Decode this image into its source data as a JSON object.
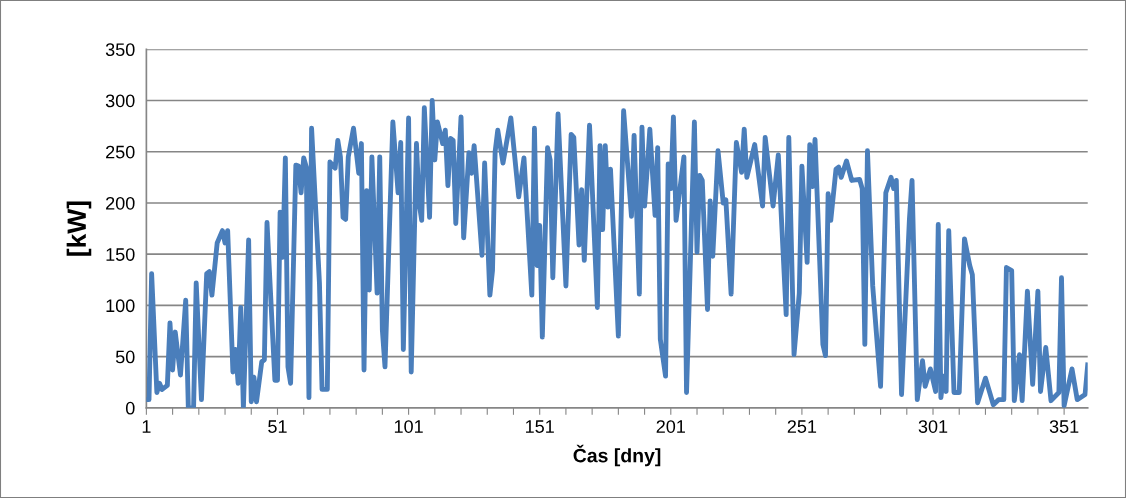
{
  "chart_data": {
    "type": "line",
    "xlabel": "Čas [dny]",
    "ylabel": "[kW]",
    "series": [
      {
        "color": "#4a7ebb",
        "x": [
          1,
          2,
          3,
          5,
          6,
          7,
          9,
          10,
          11,
          12,
          14,
          16,
          17,
          19,
          20,
          22,
          24,
          25,
          26,
          28,
          30,
          31,
          32,
          34,
          35,
          36,
          37,
          38,
          40,
          41,
          42,
          43,
          45,
          46,
          47,
          50,
          51,
          52,
          53,
          54,
          55,
          56,
          58,
          59,
          60,
          61,
          62,
          63,
          64,
          67,
          68,
          70,
          71,
          73,
          74,
          75,
          76,
          77,
          78,
          80,
          82,
          83,
          84,
          85,
          86,
          87,
          89,
          90,
          91,
          92,
          95,
          97,
          98,
          99,
          101,
          102,
          104,
          105,
          106,
          107,
          109,
          110,
          111,
          112,
          114,
          115,
          116,
          117,
          118,
          119,
          121,
          122,
          124,
          125,
          126,
          129,
          130,
          132,
          133,
          134,
          135,
          137,
          140,
          143,
          145,
          148,
          149,
          150,
          151,
          152,
          154,
          155,
          156,
          158,
          161,
          163,
          164,
          166,
          167,
          168,
          170,
          173,
          174,
          175,
          176,
          177,
          178,
          181,
          183,
          186,
          187,
          189,
          190,
          191,
          192,
          193,
          195,
          196,
          197,
          199,
          200,
          201,
          202,
          203,
          206,
          207,
          210,
          211,
          212,
          213,
          215,
          216,
          217,
          219,
          221,
          222,
          224,
          226,
          228,
          229,
          230,
          233,
          236,
          237,
          240,
          242,
          245,
          246,
          248,
          250,
          251,
          253,
          254,
          255,
          256,
          259,
          260,
          261,
          262,
          264,
          265,
          266,
          268,
          270,
          273,
          274,
          275,
          276,
          278,
          281,
          283,
          285,
          286,
          287,
          289,
          292,
          293,
          295,
          297,
          298,
          300,
          302,
          303,
          304,
          305,
          306,
          307,
          309,
          311,
          313,
          315,
          316,
          318,
          321,
          324,
          326,
          328,
          329,
          331,
          332,
          334,
          335,
          337,
          339,
          341,
          342,
          344,
          346,
          349,
          350,
          351,
          354,
          356,
          359,
          360
        ],
        "values": [
          8,
          8,
          131,
          15,
          24,
          18,
          22,
          83,
          37,
          74,
          32,
          105,
          0,
          0,
          122,
          8,
          131,
          133,
          110,
          161,
          173,
          161,
          173,
          35,
          57,
          24,
          98,
          0,
          164,
          6,
          30,
          6,
          45,
          47,
          181,
          27,
          27,
          191,
          147,
          244,
          40,
          24,
          237,
          236,
          210,
          244,
          235,
          10,
          273,
          122,
          18,
          18,
          240,
          234,
          261,
          245,
          186,
          184,
          245,
          273,
          229,
          258,
          37,
          212,
          115,
          245,
          112,
          245,
          76,
          40,
          279,
          210,
          259,
          57,
          283,
          35,
          258,
          200,
          183,
          293,
          186,
          300,
          242,
          279,
          258,
          271,
          217,
          263,
          261,
          180,
          284,
          166,
          249,
          229,
          256,
          149,
          239,
          110,
          134,
          250,
          271,
          239,
          283,
          206,
          244,
          110,
          273,
          139,
          178,
          69,
          254,
          242,
          127,
          287,
          119,
          267,
          264,
          159,
          213,
          144,
          276,
          98,
          256,
          174,
          256,
          196,
          233,
          70,
          290,
          187,
          266,
          111,
          274,
          197,
          233,
          272,
          188,
          254,
          67,
          31,
          238,
          214,
          284,
          183,
          245,
          15,
          279,
          152,
          227,
          222,
          96,
          202,
          148,
          251,
          200,
          203,
          111,
          259,
          230,
          272,
          225,
          257,
          197,
          264,
          197,
          247,
          91,
          264,
          52,
          112,
          236,
          142,
          257,
          216,
          262,
          62,
          51,
          209,
          183,
          233,
          235,
          225,
          241,
          222,
          223,
          214,
          62,
          251,
          119,
          21,
          210,
          225,
          214,
          222,
          13,
          184,
          222,
          8,
          46,
          21,
          38,
          16,
          179,
          10,
          31,
          16,
          173,
          15,
          15,
          165,
          139,
          130,
          5,
          29,
          3,
          8,
          8,
          137,
          134,
          7,
          52,
          7,
          114,
          23,
          114,
          16,
          59,
          7,
          15,
          127,
          2,
          38,
          8,
          13,
          42
        ]
      }
    ],
    "xlim": [
      1,
      360
    ],
    "xticks": [
      1,
      {
        "value": 11,
        "label": null
      },
      {
        "value": 21,
        "label": null
      },
      {
        "value": 31,
        "label": null
      },
      {
        "value": 41,
        "label": null
      },
      51,
      {
        "value": 61,
        "label": null
      },
      {
        "value": 71,
        "label": null
      },
      {
        "value": 81,
        "label": null
      },
      {
        "value": 91,
        "label": null
      },
      101,
      {
        "value": 111,
        "label": null
      },
      {
        "value": 121,
        "label": null
      },
      {
        "value": 131,
        "label": null
      },
      {
        "value": 141,
        "label": null
      },
      151,
      {
        "value": 161,
        "label": null
      },
      {
        "value": 171,
        "label": null
      },
      {
        "value": 181,
        "label": null
      },
      {
        "value": 191,
        "label": null
      },
      201,
      {
        "value": 211,
        "label": null
      },
      {
        "value": 221,
        "label": null
      },
      {
        "value": 231,
        "label": null
      },
      {
        "value": 241,
        "label": null
      },
      251,
      {
        "value": 261,
        "label": null
      },
      {
        "value": 271,
        "label": null
      },
      {
        "value": 281,
        "label": null
      },
      {
        "value": 291,
        "label": null
      },
      301,
      {
        "value": 311,
        "label": null
      },
      {
        "value": 321,
        "label": null
      },
      {
        "value": 331,
        "label": null
      },
      {
        "value": 341,
        "label": null
      },
      351
    ],
    "ylim": [
      0,
      350
    ],
    "yticks": [
      0,
      50,
      100,
      150,
      200,
      250,
      300,
      350
    ],
    "grid": "y",
    "legend": false,
    "marker": "none",
    "line_style": "solid"
  }
}
